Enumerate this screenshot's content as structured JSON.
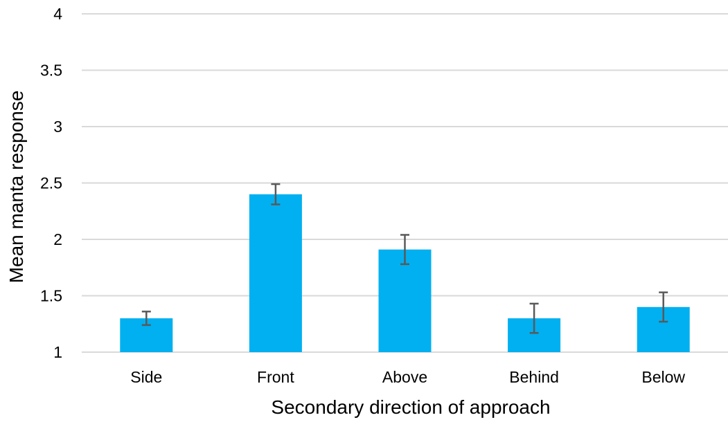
{
  "chart_data": {
    "type": "bar",
    "title": "",
    "xlabel": "Secondary direction of approach",
    "ylabel": "Mean manta response",
    "categories": [
      "Side",
      "Front",
      "Above",
      "Behind",
      "Below"
    ],
    "values": [
      1.3,
      2.4,
      1.91,
      1.3,
      1.4
    ],
    "error": [
      0.06,
      0.09,
      0.13,
      0.13,
      0.13
    ],
    "ylim": [
      1,
      4
    ],
    "yticks": [
      1,
      1.5,
      2,
      2.5,
      3,
      3.5,
      4
    ],
    "ytick_labels": [
      "1",
      "1.5",
      "2",
      "2.5",
      "3",
      "3.5",
      "4"
    ],
    "grid": true,
    "legend": "none",
    "colors": {
      "bar": "#00b0f0",
      "error_bar": "#595959",
      "grid": "#d9d9d9"
    }
  }
}
